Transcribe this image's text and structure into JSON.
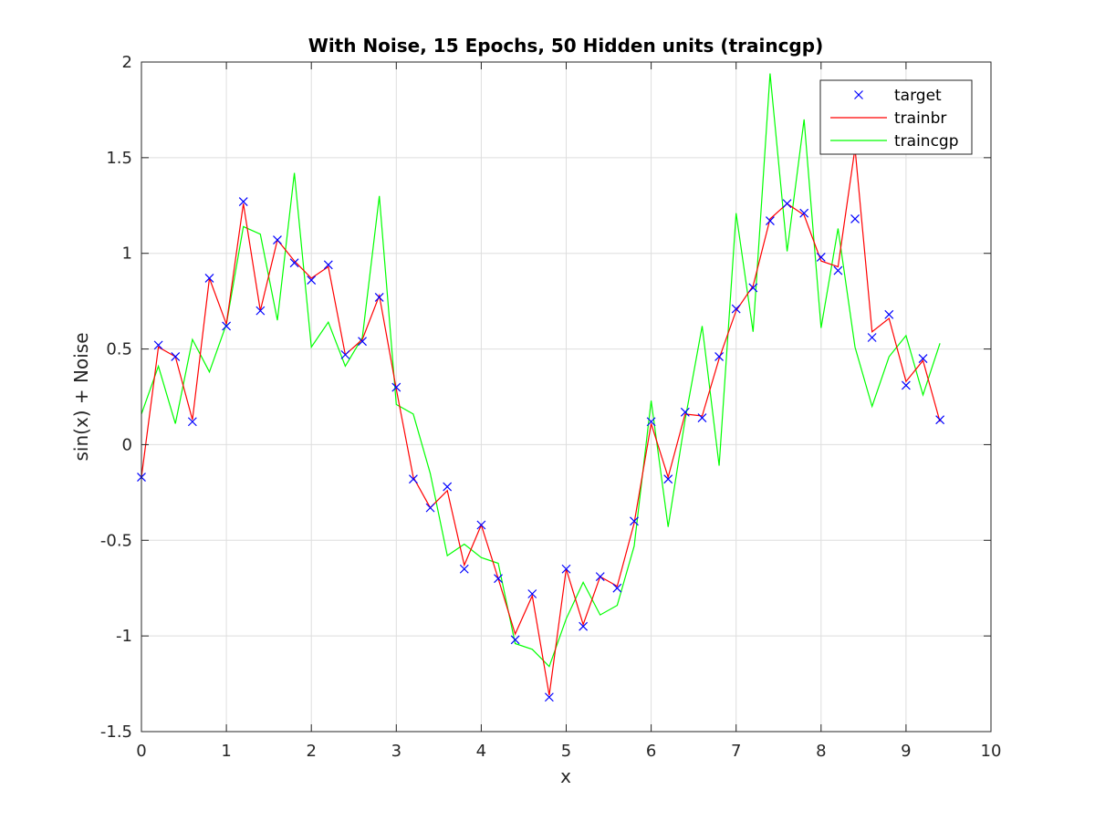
{
  "chart_data": {
    "type": "line",
    "title": "With Noise, 15 Epochs, 50 Hidden units (traincgp)",
    "xlabel": "x",
    "ylabel": "sin(x) + Noise",
    "xlim": [
      0,
      10
    ],
    "ylim": [
      -1.5,
      2
    ],
    "xticks": [
      0,
      1,
      2,
      3,
      4,
      5,
      6,
      7,
      8,
      9,
      10
    ],
    "xtick_labels": [
      "0",
      "1",
      "2",
      "3",
      "4",
      "5",
      "6",
      "7",
      "8",
      "9",
      "10"
    ],
    "yticks": [
      -1.5,
      -1,
      -0.5,
      0,
      0.5,
      1,
      1.5,
      2
    ],
    "ytick_labels": [
      "-1.5",
      "-1",
      "-0.5",
      "0",
      "0.5",
      "1",
      "1.5",
      "2"
    ],
    "grid": true,
    "legend_position": "top-right",
    "x": [
      0,
      0.2,
      0.4,
      0.6,
      0.8,
      1.0,
      1.2,
      1.4,
      1.6,
      1.8,
      2.0,
      2.2,
      2.4,
      2.6,
      2.8,
      3.0,
      3.2,
      3.4,
      3.6,
      3.8,
      4.0,
      4.2,
      4.4,
      4.6,
      4.8,
      5.0,
      5.2,
      5.4,
      5.6,
      5.8,
      6.0,
      6.2,
      6.4,
      6.6,
      6.8,
      7.0,
      7.2,
      7.4,
      7.6,
      7.8,
      8.0,
      8.2,
      8.4,
      8.6,
      8.8,
      9.0,
      9.2,
      9.4
    ],
    "series": [
      {
        "name": "target",
        "style": "marker-x",
        "color": "#0000ff",
        "values": [
          -0.17,
          0.52,
          0.46,
          0.12,
          0.87,
          0.62,
          1.27,
          0.7,
          1.07,
          0.95,
          0.86,
          0.94,
          0.47,
          0.54,
          0.77,
          0.3,
          -0.18,
          -0.33,
          -0.22,
          -0.65,
          -0.42,
          -0.7,
          -1.02,
          -0.78,
          -1.32,
          -0.65,
          -0.95,
          -0.69,
          -0.75,
          -0.4,
          0.12,
          -0.18,
          0.17,
          0.14,
          0.46,
          0.71,
          0.82,
          1.17,
          1.26,
          1.21,
          0.98,
          0.91,
          1.18,
          0.56,
          0.68,
          0.31,
          0.45,
          0.13
        ]
      },
      {
        "name": "trainbr",
        "style": "line",
        "color": "#ff0000",
        "values": [
          -0.17,
          0.51,
          0.46,
          0.13,
          0.87,
          0.63,
          1.26,
          0.7,
          1.07,
          0.96,
          0.87,
          0.93,
          0.47,
          0.55,
          0.78,
          0.29,
          -0.17,
          -0.33,
          -0.24,
          -0.63,
          -0.42,
          -0.7,
          -0.99,
          -0.79,
          -1.31,
          -0.65,
          -0.94,
          -0.69,
          -0.74,
          -0.41,
          0.11,
          -0.17,
          0.16,
          0.15,
          0.45,
          0.7,
          0.83,
          1.18,
          1.26,
          1.2,
          0.96,
          0.93,
          1.55,
          0.59,
          0.66,
          0.33,
          0.44,
          0.12
        ]
      },
      {
        "name": "traincgp",
        "style": "line",
        "color": "#00ff00",
        "values": [
          0.16,
          0.41,
          0.11,
          0.55,
          0.38,
          0.63,
          1.14,
          1.1,
          0.65,
          1.42,
          0.51,
          0.64,
          0.41,
          0.56,
          1.3,
          0.21,
          0.16,
          -0.15,
          -0.58,
          -0.52,
          -0.59,
          -0.62,
          -1.04,
          -1.07,
          -1.16,
          -0.91,
          -0.72,
          -0.89,
          -0.84,
          -0.53,
          0.23,
          -0.43,
          0.13,
          0.62,
          -0.11,
          1.21,
          0.59,
          1.94,
          1.01,
          1.7,
          0.61,
          1.13,
          0.51,
          0.2,
          0.46,
          0.57,
          0.26,
          0.53
        ]
      }
    ]
  }
}
